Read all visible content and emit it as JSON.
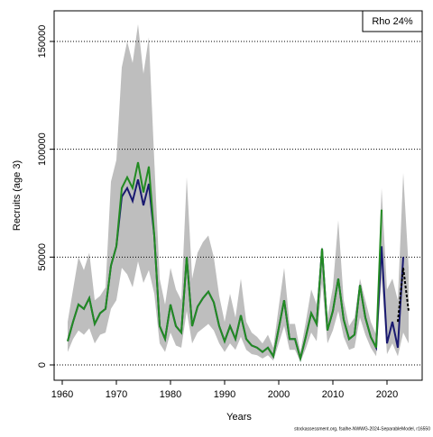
{
  "chart_data": {
    "type": "line",
    "x_label": "Years",
    "y_label": "Recruits (age 3)",
    "annotation": "Rho 24%",
    "footer": "stockassessment.org, fsalhe-NWWG-2024-SeparableModel, r16550",
    "x": [
      1961,
      1962,
      1963,
      1964,
      1965,
      1966,
      1967,
      1968,
      1969,
      1970,
      1971,
      1972,
      1973,
      1974,
      1975,
      1976,
      1977,
      1978,
      1979,
      1980,
      1981,
      1982,
      1983,
      1984,
      1985,
      1986,
      1987,
      1988,
      1989,
      1990,
      1991,
      1992,
      1993,
      1994,
      1995,
      1996,
      1997,
      1998,
      1999,
      2000,
      2001,
      2002,
      2003,
      2004,
      2005,
      2006,
      2007,
      2008,
      2009,
      2010,
      2011,
      2012,
      2013,
      2014,
      2015,
      2016,
      2017,
      2018,
      2019,
      2020,
      2021,
      2022,
      2023,
      2024
    ],
    "band": {
      "color": "#bebebe",
      "upper": [
        20000,
        35000,
        50000,
        44000,
        52000,
        30000,
        32000,
        36000,
        85000,
        95000,
        138000,
        150000,
        140000,
        158000,
        135000,
        152000,
        95000,
        40000,
        28000,
        45000,
        35000,
        30000,
        87000,
        40000,
        52000,
        57000,
        60000,
        50000,
        32000,
        20000,
        33000,
        22000,
        40000,
        20000,
        15000,
        13000,
        10000,
        14000,
        8000,
        27000,
        45000,
        19000,
        19000,
        6000,
        20000,
        35000,
        28000,
        55000,
        22000,
        36000,
        67000,
        30000,
        18000,
        22000,
        40000,
        30000,
        20000,
        14000,
        82000,
        35000,
        40000,
        30000,
        89000,
        45000
      ],
      "lower": [
        6000,
        12000,
        16000,
        14000,
        17000,
        10000,
        14000,
        15000,
        26000,
        30000,
        45000,
        42000,
        36000,
        48000,
        38000,
        44000,
        33000,
        10000,
        6000,
        15000,
        9000,
        8000,
        25000,
        10000,
        15000,
        17000,
        19000,
        16000,
        10000,
        6000,
        10000,
        7000,
        13000,
        7000,
        5000,
        4500,
        3000,
        4500,
        2000,
        10000,
        18000,
        7000,
        7000,
        1500,
        7500,
        15000,
        11000,
        38000,
        10000,
        16000,
        25000,
        13000,
        7000,
        8000,
        22000,
        14000,
        8000,
        4000,
        40000,
        5000,
        10000,
        4000,
        15000,
        10000
      ]
    },
    "series": [
      {
        "color": "#191970",
        "values": [
          11000,
          20000,
          28000,
          26000,
          31000,
          19000,
          24000,
          26000,
          46000,
          55000,
          78000,
          82000,
          76000,
          86000,
          74000,
          84000,
          60000,
          18000,
          12000,
          28000,
          18000,
          15000,
          50000,
          18000,
          27000,
          31000,
          34000,
          29000,
          18000,
          11000,
          18000,
          12000,
          23000,
          12000,
          9000,
          8000,
          6000,
          8000,
          4000,
          17000,
          30000,
          12000,
          12000,
          3000,
          13000,
          24000,
          19000,
          54000,
          16000,
          25000,
          40000,
          21000,
          12000,
          14000,
          37000,
          22000,
          13000,
          8000,
          55000,
          10000,
          20000,
          8000,
          50000,
          null
        ]
      },
      {
        "color": "#228b22",
        "values": [
          11000,
          20000,
          28000,
          26000,
          31000,
          19000,
          24000,
          26000,
          46000,
          55000,
          82000,
          87000,
          82000,
          94000,
          80000,
          92000,
          60000,
          18000,
          12000,
          28000,
          18000,
          15000,
          50000,
          18000,
          27000,
          31000,
          34000,
          29000,
          18000,
          11000,
          18000,
          12000,
          23000,
          12000,
          9000,
          8000,
          6000,
          8000,
          4000,
          17000,
          30000,
          12000,
          12000,
          3000,
          13000,
          24000,
          19000,
          54000,
          16000,
          25000,
          40000,
          21000,
          12000,
          14000,
          37000,
          22000,
          13000,
          8000,
          72000,
          null,
          null,
          null,
          null,
          null
        ]
      },
      {
        "color": "#000000",
        "dash": true,
        "values": [
          null,
          null,
          null,
          null,
          null,
          null,
          null,
          null,
          null,
          null,
          null,
          null,
          null,
          null,
          null,
          null,
          null,
          null,
          null,
          null,
          null,
          null,
          null,
          null,
          null,
          null,
          null,
          null,
          null,
          null,
          null,
          null,
          null,
          null,
          null,
          null,
          null,
          null,
          null,
          null,
          null,
          null,
          null,
          null,
          null,
          null,
          null,
          null,
          null,
          null,
          null,
          null,
          null,
          null,
          null,
          null,
          null,
          null,
          null,
          null,
          null,
          20000,
          45000,
          25000
        ]
      }
    ],
    "xlim": [
      1958.5,
      2026.5
    ],
    "ylim": [
      -7100,
      164200
    ],
    "xticks": [
      1960,
      1970,
      1980,
      1990,
      2000,
      2010,
      2020
    ],
    "yticks": [
      0,
      50000,
      100000,
      150000
    ],
    "grid": true
  }
}
